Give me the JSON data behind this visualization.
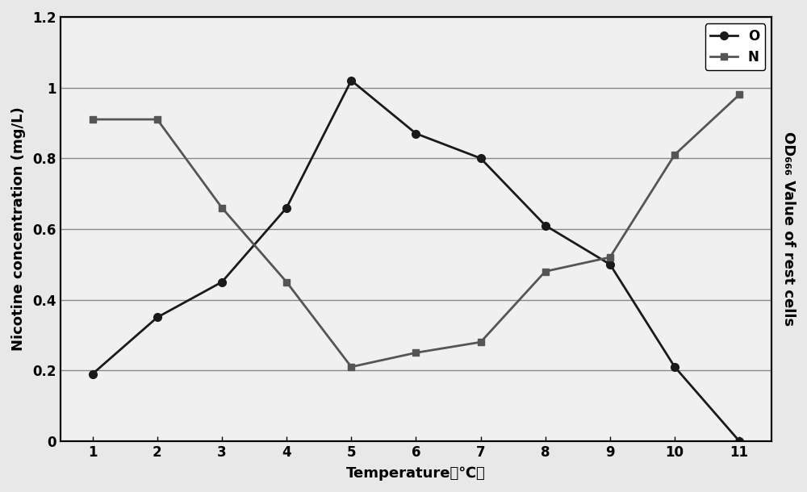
{
  "x": [
    1,
    2,
    3,
    4,
    5,
    6,
    7,
    8,
    9,
    10,
    11
  ],
  "series_O": [
    0.19,
    0.35,
    0.45,
    0.66,
    1.02,
    0.87,
    0.8,
    0.61,
    0.5,
    0.21,
    0.0
  ],
  "series_N": [
    0.91,
    0.91,
    0.66,
    0.45,
    0.21,
    0.25,
    0.28,
    0.48,
    0.52,
    0.81,
    0.98
  ],
  "xlabel": "Temperature（℃）",
  "ylabel_left": "Nicotine concentration (mg/L)",
  "ylabel_right": "OD₆₆₆ Value of rest cells",
  "legend_O": "O",
  "legend_N": "N",
  "xlim": [
    0.5,
    11.5
  ],
  "ylim": [
    0,
    1.2
  ],
  "yticks": [
    0,
    0.2,
    0.4,
    0.6,
    0.8,
    1.0,
    1.2
  ],
  "xticks": [
    1,
    2,
    3,
    4,
    5,
    6,
    7,
    8,
    9,
    10,
    11
  ],
  "ytick_labels": [
    "0",
    "0.2",
    "0.4",
    "0.6",
    "0.8",
    "1",
    "1.2"
  ],
  "color_O": "#1a1a1a",
  "color_N": "#555555",
  "background_color": "#e8e8e8",
  "plot_bg_color": "#f0f0f0",
  "grid_color": "#888888",
  "label_fontsize": 13,
  "tick_fontsize": 12,
  "legend_fontsize": 12,
  "line_width": 2.0,
  "marker_size_O": 7,
  "marker_size_N": 6
}
